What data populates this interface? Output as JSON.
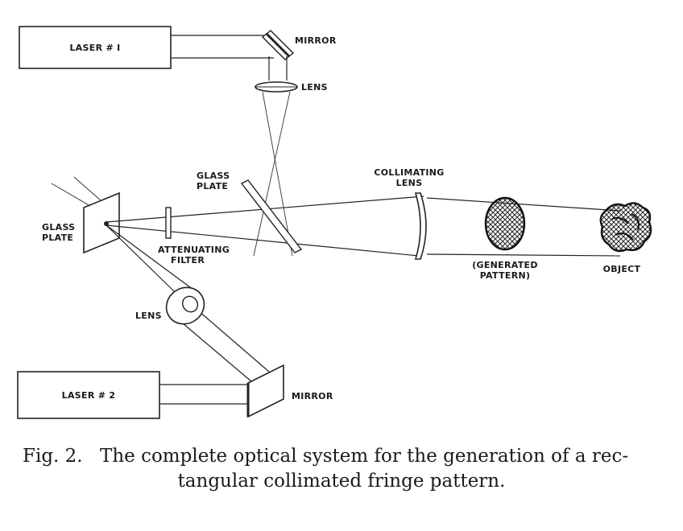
{
  "labels": {
    "laser1": "LASER # I",
    "mirror_top": "MIRROR",
    "lens_top": "LENS",
    "glass_plate_center": [
      "GLASS",
      "PLATE"
    ],
    "collimating_lens": [
      "COLLIMATING",
      "LENS"
    ],
    "glass_plate_left": [
      "GLASS",
      "PLATE"
    ],
    "attenuating_filter": [
      "ATTENUATING",
      "FILTER"
    ],
    "generated_pattern": [
      "(GENERATED",
      "PATTERN)"
    ],
    "object": "OBJECT",
    "lens_bottom": "LENS",
    "laser2": "LASER # 2",
    "mirror_bottom": "MIRROR"
  },
  "caption": {
    "number": "Fig. 2.",
    "line1": "The complete optical system for the generation of a rec-",
    "line2": "tangular collimated fringe pattern."
  }
}
